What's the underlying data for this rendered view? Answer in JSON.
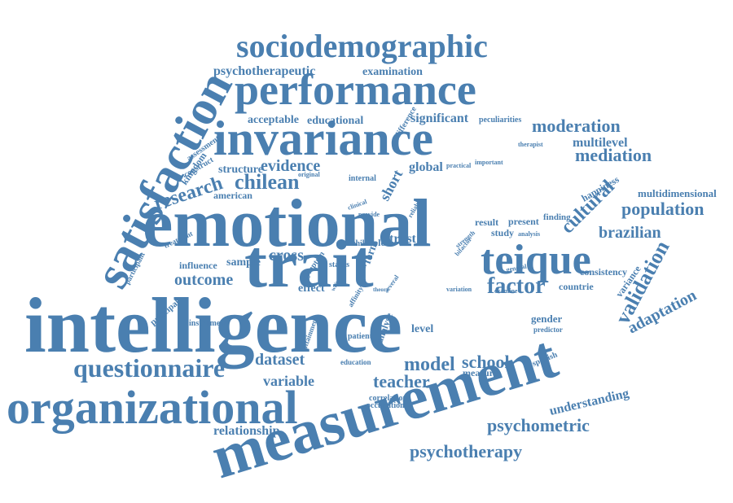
{
  "word_cloud": {
    "color": "#4a7fb0",
    "words": [
      {
        "text": "intelligence"
      },
      {
        "text": "emotional"
      },
      {
        "text": "measurement"
      },
      {
        "text": "organizational"
      },
      {
        "text": "satisfaction"
      },
      {
        "text": "trait"
      },
      {
        "text": "invariance"
      },
      {
        "text": "performance"
      },
      {
        "text": "sociodemographic"
      },
      {
        "text": "teique"
      },
      {
        "text": "questionnaire"
      },
      {
        "text": "psychotherapy"
      },
      {
        "text": "psychometric"
      },
      {
        "text": "validation"
      },
      {
        "text": "adaptation"
      },
      {
        "text": "cultural"
      },
      {
        "text": "population"
      },
      {
        "text": "brazilian"
      },
      {
        "text": "moderation"
      },
      {
        "text": "mediation"
      },
      {
        "text": "multilevel"
      },
      {
        "text": "chilean"
      },
      {
        "text": "research"
      },
      {
        "text": "evidence"
      },
      {
        "text": "factor"
      },
      {
        "text": "model"
      },
      {
        "text": "school"
      },
      {
        "text": "teacher"
      },
      {
        "text": "dataset"
      },
      {
        "text": "variable"
      },
      {
        "text": "outcome"
      },
      {
        "text": "relationship"
      },
      {
        "text": "understanding"
      },
      {
        "text": "psychotherapeutic"
      },
      {
        "text": "examination"
      },
      {
        "text": "significant"
      },
      {
        "text": "acceptable"
      },
      {
        "text": "educational"
      },
      {
        "text": "structure"
      },
      {
        "text": "cross"
      },
      {
        "text": "trust"
      },
      {
        "text": "short"
      },
      {
        "text": "global"
      },
      {
        "text": "multidimensional"
      },
      {
        "text": "happiness"
      },
      {
        "text": "kingdom"
      },
      {
        "text": "american"
      },
      {
        "text": "sample"
      },
      {
        "text": "influence"
      },
      {
        "text": "principal"
      },
      {
        "text": "effect"
      },
      {
        "text": "level"
      },
      {
        "text": "gender"
      },
      {
        "text": "spanish"
      },
      {
        "text": "variance"
      },
      {
        "text": "consistency"
      },
      {
        "text": "countrie"
      },
      {
        "text": "measure"
      },
      {
        "text": "correlation"
      },
      {
        "text": "occupation"
      },
      {
        "text": "education"
      },
      {
        "text": "patient"
      },
      {
        "text": "instrument"
      },
      {
        "text": "treatment"
      },
      {
        "text": "participant"
      },
      {
        "text": "construct"
      },
      {
        "text": "assessment"
      },
      {
        "text": "difference"
      },
      {
        "text": "peculiarities"
      },
      {
        "text": "therapist"
      },
      {
        "text": "important"
      },
      {
        "text": "practical"
      },
      {
        "text": "internal"
      },
      {
        "text": "original"
      },
      {
        "text": "result"
      },
      {
        "text": "present"
      },
      {
        "text": "finding"
      },
      {
        "text": "study"
      },
      {
        "text": "analysis"
      },
      {
        "text": "chile"
      },
      {
        "text": "role"
      },
      {
        "text": "form"
      },
      {
        "text": "esem"
      },
      {
        "text": "status"
      },
      {
        "text": "symptom"
      },
      {
        "text": "attainment"
      },
      {
        "text": "analyse"
      },
      {
        "text": "predictor"
      },
      {
        "text": "examine"
      },
      {
        "text": "general"
      },
      {
        "text": "variation"
      },
      {
        "text": "theory"
      },
      {
        "text": "several"
      },
      {
        "text": "affinity"
      },
      {
        "text": "bifactor"
      },
      {
        "text": "strength"
      },
      {
        "text": "reliable"
      },
      {
        "text": "provide"
      },
      {
        "text": "clinical"
      },
      {
        "text": "write"
      }
    ]
  }
}
